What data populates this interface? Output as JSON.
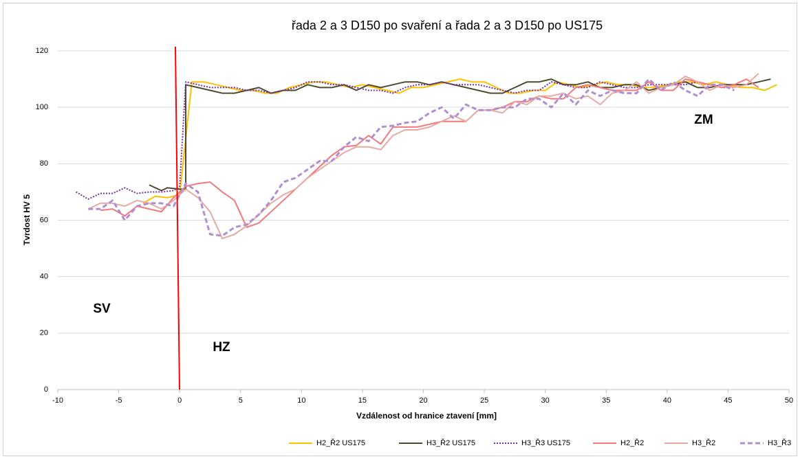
{
  "chart_data": {
    "type": "line",
    "title": "řada 2 a 3 D150 po svaření a řada  2 a 3 D150 po US175",
    "xlabel": "Vzdálenost od hranice ztavení [mm]",
    "ylabel": "Tvrdost HV 5",
    "xlim": [
      -10,
      50
    ],
    "xticks": [
      -10,
      -5,
      0,
      5,
      10,
      15,
      20,
      25,
      30,
      35,
      40,
      45,
      50
    ],
    "ylim": [
      0,
      120
    ],
    "yticks": [
      0,
      20,
      40,
      60,
      80,
      100,
      120
    ],
    "grid": true,
    "legend": "bottom",
    "annotations": [
      "SV",
      "HZ",
      "ZM"
    ],
    "series": [
      {
        "name": "H2_Ř2 US175",
        "color": "#FFC000",
        "dash": "solid",
        "x": [
          -3,
          -2,
          -1,
          0,
          1,
          2,
          3,
          4,
          5,
          6,
          7,
          8,
          9,
          10,
          11,
          12,
          13,
          14,
          15,
          16,
          17,
          18,
          19,
          20,
          21,
          22,
          23,
          24,
          25,
          26,
          27,
          28,
          29,
          30,
          31,
          32,
          33,
          34,
          35,
          36,
          37,
          38,
          39,
          40,
          41,
          42,
          43,
          44,
          45,
          46,
          47,
          48,
          49
        ],
        "values": [
          66,
          68.5,
          68,
          69,
          109,
          109,
          108,
          107,
          106,
          106,
          105,
          105,
          107,
          108,
          109,
          109,
          108,
          107,
          108,
          107,
          106,
          105,
          107,
          107,
          108,
          109,
          110,
          109,
          109,
          107,
          105,
          105,
          106,
          106,
          109,
          108,
          107,
          108,
          109,
          108,
          108,
          107,
          107,
          108,
          109,
          109,
          108,
          109,
          108,
          107,
          107,
          106,
          108
        ]
      },
      {
        "name": "H3_Ř2 US175",
        "color": "#4E4A31",
        "dash": "solid",
        "x": [
          -2.5,
          -1.5,
          -1,
          0,
          0.5,
          0.5,
          1.5,
          2.5,
          3.5,
          4.5,
          5.5,
          6.5,
          7.5,
          8.5,
          9.5,
          10.5,
          11.5,
          12.5,
          13.5,
          14.5,
          15.5,
          16.5,
          17.5,
          18.5,
          19.5,
          20.5,
          21.5,
          22.5,
          23.5,
          24.5,
          25.5,
          26.5,
          27.5,
          28.5,
          29.5,
          30.5,
          31.5,
          32.5,
          33.5,
          34.5,
          35.5,
          36.5,
          37.5,
          38.5,
          39.5,
          40.5,
          41.5,
          42.5,
          43.5,
          44.5,
          45.5,
          46.5,
          47.5,
          48.5
        ],
        "values": [
          72.5,
          70.5,
          71.5,
          71,
          71,
          108,
          107,
          106,
          105,
          105,
          106,
          107,
          105,
          106,
          106,
          108,
          107,
          107,
          108,
          106,
          108,
          107,
          108,
          109,
          109,
          108,
          109,
          108,
          107,
          106,
          105,
          105,
          107,
          109,
          109,
          110,
          108,
          108,
          109,
          107,
          107,
          108,
          108,
          106,
          107,
          108,
          109,
          107,
          107,
          108,
          108,
          108,
          109,
          110
        ]
      },
      {
        "name": "H3_Ř3 US175",
        "color": "#7030A0",
        "dash": "dotted",
        "x": [
          -8.5,
          -7.5,
          -6.5,
          -5.5,
          -4.5,
          -3.5,
          -2.5,
          -1.5,
          -0.5,
          0,
          0.5,
          1.5,
          2.5,
          3.5,
          4.5,
          5.5,
          6.5,
          7.5,
          8.5,
          9.5,
          10.5,
          11.5,
          12.5,
          13.5,
          14.5,
          15.5,
          16.5,
          17.5,
          18.5,
          19.5,
          20.5,
          21.5,
          22.5,
          23.5,
          24.5,
          25.5,
          26.5,
          27.5,
          28.5,
          29.5,
          30.5,
          31.5,
          32.5,
          33.5,
          34.5,
          35.5,
          36.5,
          37.5,
          38.5,
          39.5,
          40.5,
          41.5,
          42.5,
          43.5,
          44.5,
          45.5
        ],
        "values": [
          70,
          67.5,
          69.5,
          69.5,
          71.5,
          69.5,
          70,
          70,
          70.5,
          72,
          109,
          108,
          107,
          107,
          107,
          106,
          106,
          105,
          106,
          107,
          109,
          109,
          108,
          108,
          107,
          106,
          106,
          105,
          107,
          108,
          108,
          109,
          108,
          108,
          108,
          107,
          106,
          105,
          106,
          106,
          109,
          108,
          107,
          107,
          109,
          108,
          107,
          107,
          108,
          108,
          108,
          108,
          109,
          108,
          107,
          107
        ]
      },
      {
        "name": "H2_Ř2",
        "color": "#F4777B",
        "dash": "solid",
        "x": [
          -6.5,
          -5.5,
          -4.5,
          -3.5,
          -2.5,
          -1.5,
          -0.5,
          0.5,
          1.5,
          2.5,
          3.5,
          4.5,
          5.5,
          6.5,
          7.5,
          8.5,
          9.5,
          10.5,
          11.5,
          12.5,
          13.5,
          14.5,
          15.5,
          16.5,
          17.5,
          18.5,
          19.5,
          20.5,
          21.5,
          22.5,
          23.5,
          24.5,
          25.5,
          26.5,
          27.5,
          28.5,
          29.5,
          30.5,
          31.5,
          32.5,
          33.5,
          34.5,
          35.5,
          36.5,
          37.5,
          38.5,
          39.5,
          40.5,
          41.5,
          42.5,
          43.5,
          44.5,
          45.5,
          46.5,
          47.5
        ],
        "values": [
          63.5,
          64,
          61.5,
          65,
          64,
          63,
          68,
          72,
          73,
          73.5,
          70,
          67,
          57.5,
          59,
          63,
          67,
          71,
          75,
          79,
          83,
          86,
          86.5,
          90,
          87,
          93,
          93,
          93,
          94,
          95,
          95,
          95,
          99,
          99,
          100,
          102,
          102,
          104,
          103,
          103,
          107,
          108,
          107,
          106,
          106,
          106,
          109,
          106,
          106,
          110,
          109,
          108,
          107,
          108,
          110,
          107
        ]
      },
      {
        "name": "H3_Ř2",
        "color": "#E8A9A3",
        "dash": "solid",
        "x": [
          -7.5,
          -6.5,
          -5.5,
          -4.5,
          -3.5,
          -2.5,
          -1.5,
          -0.5,
          0.5,
          1.5,
          2.5,
          3.5,
          4.5,
          5.5,
          6.5,
          7.5,
          8.5,
          9.5,
          10.5,
          11.5,
          12.5,
          13.5,
          14.5,
          15.5,
          16.5,
          17.5,
          18.5,
          19.5,
          20.5,
          21.5,
          22.5,
          23.5,
          24.5,
          25.5,
          26.5,
          27.5,
          28.5,
          29.5,
          30.5,
          31.5,
          32.5,
          33.5,
          34.5,
          35.5,
          36.5,
          37.5,
          38.5,
          39.5,
          40.5,
          41.5,
          42.5,
          43.5,
          44.5,
          45.5,
          46.5,
          47.5
        ],
        "values": [
          64,
          66,
          66,
          65,
          67,
          66,
          64,
          67,
          71,
          68,
          63,
          53.5,
          55,
          58,
          62,
          66,
          69,
          71,
          75,
          78,
          81,
          84,
          86,
          86,
          85,
          90,
          92,
          92,
          93,
          95,
          97,
          95,
          99,
          99,
          98,
          102,
          101,
          104,
          104,
          105,
          103,
          104,
          101,
          105,
          106,
          109,
          105,
          107,
          108,
          111,
          109,
          106,
          108,
          107,
          108,
          112
        ]
      },
      {
        "name": "H3_Ř3",
        "color": "#B08FD0",
        "dash": "dashed",
        "x": [
          -7.5,
          -6.5,
          -5.5,
          -4.5,
          -3.5,
          -2.5,
          -1.5,
          -0.5,
          0.5,
          1.5,
          2.5,
          3.5,
          4.5,
          5.5,
          6.5,
          7.5,
          8.5,
          9.5,
          10.5,
          11.5,
          12.5,
          13.5,
          14.5,
          15.5,
          16.5,
          17.5,
          18.5,
          19.5,
          20.5,
          21.5,
          22.5,
          23.5,
          24.5,
          25.5,
          26.5,
          27.5,
          28.5,
          29.5,
          30.5,
          31.5,
          32.5,
          33.5,
          34.5,
          35.5,
          36.5,
          37.5,
          38.5,
          39.5,
          40.5,
          41.5,
          42.5,
          43.5,
          44.5,
          45.5
        ],
        "values": [
          64,
          64,
          67,
          60,
          65,
          66,
          66,
          65,
          73,
          70,
          55,
          54.5,
          57.5,
          58.5,
          62,
          67,
          73.5,
          75,
          78,
          81,
          81,
          86,
          89.5,
          88,
          93,
          93.5,
          94.5,
          95,
          98,
          100,
          96,
          101,
          99,
          99,
          100,
          100,
          103,
          103,
          100,
          105,
          101,
          106,
          104,
          106,
          105,
          105,
          110,
          106,
          109,
          106,
          104,
          108,
          108,
          106
        ]
      }
    ]
  }
}
